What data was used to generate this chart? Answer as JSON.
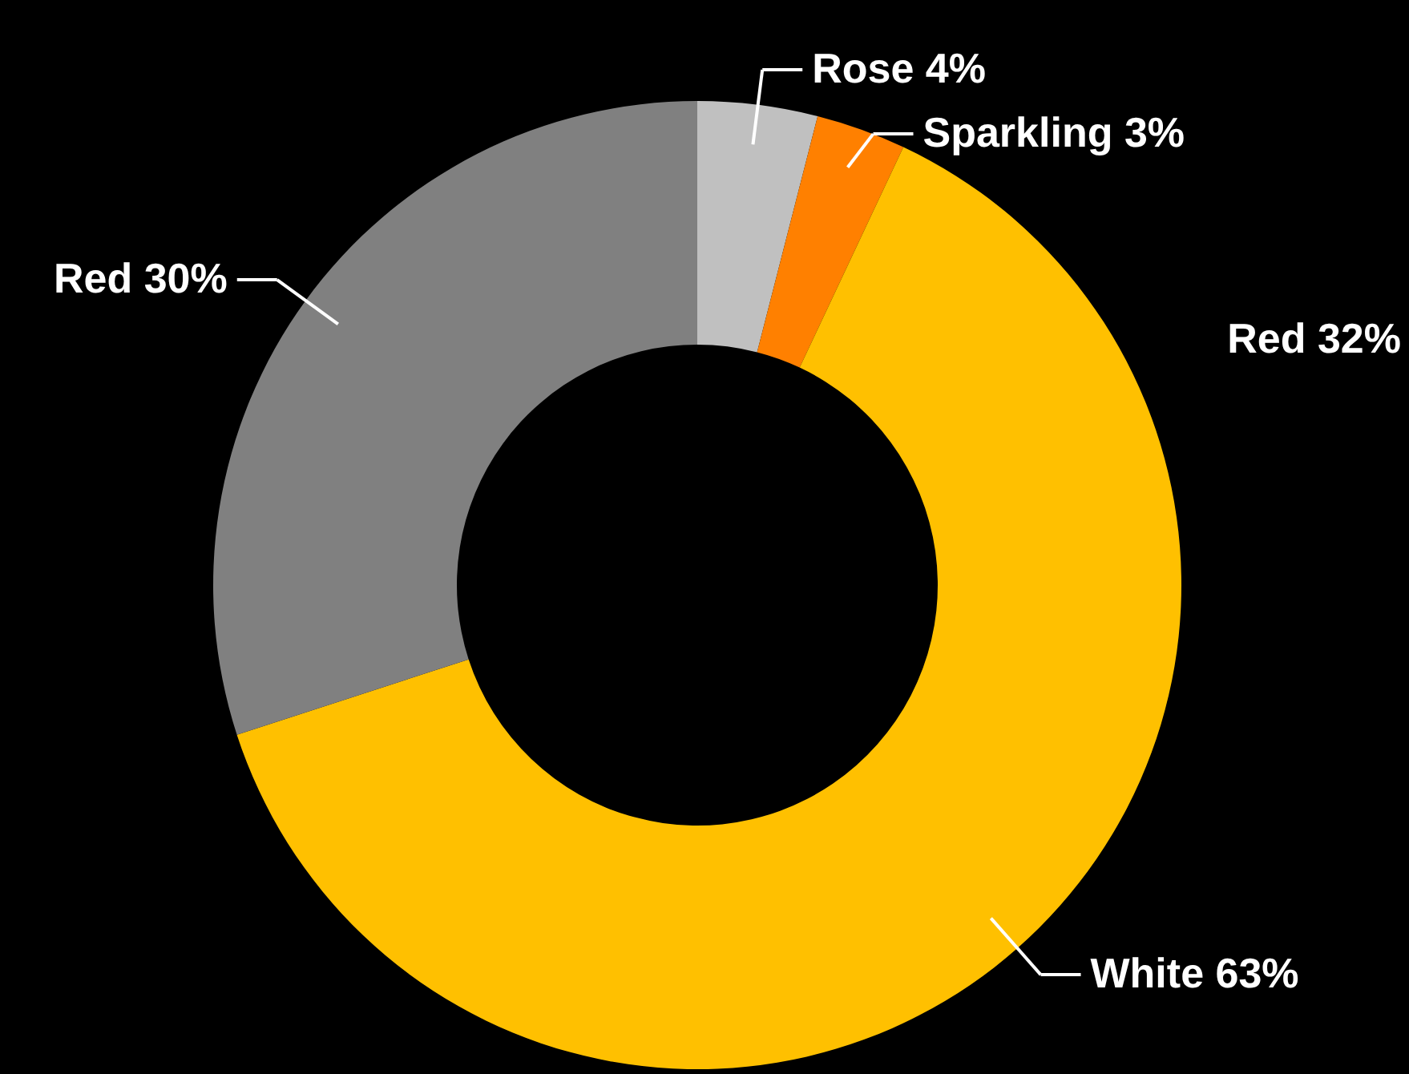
{
  "chart_data": {
    "type": "donut",
    "categories": [
      "Rose",
      "Sparkling",
      "White",
      "Red"
    ],
    "values": [
      4,
      3,
      63,
      30
    ],
    "value_labels": [
      "4%",
      "3%",
      "63%",
      "30%"
    ],
    "colors": [
      "#c0c0c0",
      "#ff8000",
      "#ffc000",
      "#808080"
    ],
    "annotations": [
      "Red 32%"
    ]
  }
}
